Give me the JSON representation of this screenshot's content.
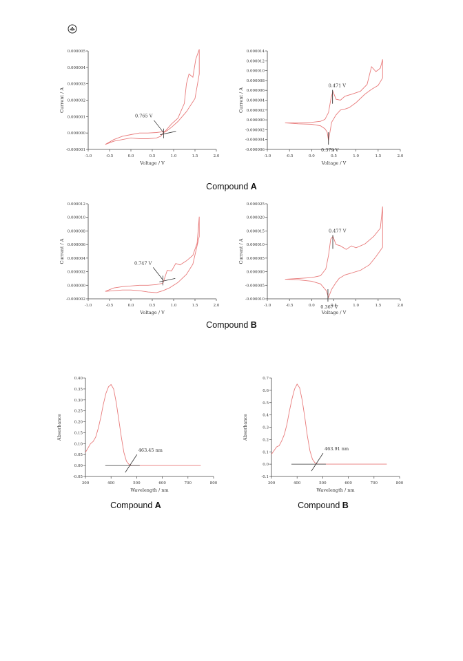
{
  "charts": [
    {
      "type": "line",
      "xlabel": "Voltage / V",
      "ylabel": "Current / A",
      "xlim": [
        -1.0,
        2.0
      ],
      "ylim": [
        -1e-06,
        5e-06
      ],
      "xticks": [
        "-1.0",
        "-0.5",
        "0.0",
        "0.5",
        "1.0",
        "1.5",
        "2.0"
      ],
      "yticks": [
        "-0.000001",
        "0.000000",
        "0.000001",
        "0.000002",
        "0.000003",
        "0.000004",
        "0.000005"
      ],
      "series": [
        {
          "color": "#e87a7a",
          "x": [
            -0.6,
            -0.4,
            -0.2,
            0.0,
            0.2,
            0.4,
            0.6,
            0.8,
            0.95,
            1.1,
            1.25,
            1.3,
            1.36,
            1.45,
            1.52,
            1.6,
            1.6,
            1.5,
            1.3,
            1.1,
            0.95,
            0.85,
            0.75,
            0.7,
            0.6,
            0.4,
            0.2,
            0.0,
            -0.2,
            -0.4,
            -0.6
          ],
          "y": [
            -7e-07,
            -4e-07,
            -2e-07,
            -1e-07,
            0.0,
            0.0,
            3e-08,
            1e-07,
            5.5e-07,
            9e-07,
            1.8e-06,
            3e-06,
            3.6e-06,
            3.4e-06,
            4.5e-06,
            5.1e-06,
            3.6e-06,
            2.1e-06,
            1.3e-06,
            7e-07,
            3.5e-07,
            1.5e-07,
            0.0,
            -2e-07,
            -3e-07,
            -3.5e-07,
            -3.5e-07,
            -3e-07,
            -4e-07,
            -5e-07,
            -7e-07
          ]
        }
      ],
      "annotations": [
        {
          "text": "0.765 V",
          "x": 0.765,
          "y": 2e-08
        }
      ]
    },
    {
      "type": "line",
      "xlabel": "Voltage / V",
      "ylabel": "Current / A",
      "xlim": [
        -1.0,
        2.0
      ],
      "ylim": [
        -6e-06,
        1.4e-05
      ],
      "xticks": [
        "-1.0",
        "-0.5",
        "0.0",
        "0.5",
        "1.0",
        "1.5",
        "2.0"
      ],
      "yticks": [
        "-0.000006",
        "-0.000004",
        "-0.000002",
        "0.000000",
        "0.000002",
        "0.000004",
        "0.000006",
        "0.000008",
        "0.000010",
        "0.000012",
        "0.000014"
      ],
      "series": [
        {
          "color": "#e87a7a",
          "x": [
            -0.6,
            -0.3,
            0.0,
            0.2,
            0.3,
            0.38,
            0.44,
            0.48,
            0.55,
            0.65,
            0.75,
            0.9,
            1.1,
            1.25,
            1.35,
            1.45,
            1.55,
            1.6,
            1.6,
            1.5,
            1.35,
            1.2,
            1.0,
            0.85,
            0.75,
            0.65,
            0.55,
            0.45,
            0.38,
            0.35,
            0.3,
            0.2,
            0.0,
            -0.3,
            -0.6
          ],
          "y": [
            -6e-07,
            -6e-07,
            -5e-07,
            -3e-07,
            1e-07,
            1.5e-06,
            4.5e-06,
            5.8e-06,
            4.2e-06,
            4e-06,
            4.8e-06,
            5.2e-06,
            5.8e-06,
            7.2e-06,
            1.08e-05,
            9.8e-06,
            1.05e-05,
            1.23e-05,
            8.5e-06,
            7e-06,
            6.2e-06,
            5.2e-06,
            3.5e-06,
            2.5e-06,
            2.2e-06,
            2e-06,
            1e-06,
            -5e-07,
            -4.2e-06,
            -2.5e-06,
            -1.8e-06,
            -1.2e-06,
            -9e-07,
            -8e-07,
            -6e-07
          ]
        }
      ],
      "annotations": [
        {
          "text": "0.471 V",
          "x": 0.471,
          "y": 5.8e-06
        },
        {
          "text": "0.379 V",
          "x": 0.379,
          "y": -4.2e-06
        }
      ]
    },
    {
      "type": "line",
      "xlabel": "Voltage / V",
      "ylabel": "Current / A",
      "xlim": [
        -1.0,
        2.0
      ],
      "ylim": [
        -2e-06,
        1.2e-05
      ],
      "xticks": [
        "-1.0",
        "-0.5",
        "0.0",
        "0.5",
        "1.0",
        "1.5",
        "2.0"
      ],
      "yticks": [
        "-0.000002",
        "0.000000",
        "0.000002",
        "0.000004",
        "0.000006",
        "0.000008",
        "0.000010",
        "0.000012"
      ],
      "series": [
        {
          "color": "#e87a7a",
          "x": [
            -0.6,
            -0.4,
            -0.2,
            0.0,
            0.2,
            0.4,
            0.6,
            0.75,
            0.85,
            0.95,
            1.05,
            1.15,
            1.3,
            1.45,
            1.55,
            1.6,
            1.6,
            1.45,
            1.3,
            1.1,
            0.9,
            0.75,
            0.6,
            0.4,
            0.2,
            0.0,
            -0.2,
            -0.4,
            -0.6
          ],
          "y": [
            -9e-07,
            -4e-07,
            -2e-07,
            -1e-07,
            0.0,
            0.0,
            1e-07,
            3e-07,
            2.2e-06,
            2.1e-06,
            3.2e-06,
            3e-06,
            3.6e-06,
            4.4e-06,
            6.2e-06,
            1.01e-05,
            7.2e-06,
            3.1e-06,
            1.6e-06,
            4e-07,
            -4e-07,
            -8e-07,
            -1.1e-06,
            -1e-06,
            -8e-07,
            -7e-07,
            -7e-07,
            -8e-07,
            -9e-07
          ]
        }
      ],
      "annotations": [
        {
          "text": "0.747 V",
          "x": 0.747,
          "y": 8e-07
        }
      ]
    },
    {
      "type": "line",
      "xlabel": "Voltage / V",
      "ylabel": "Current / A",
      "xlim": [
        -1.0,
        2.0
      ],
      "ylim": [
        -1e-05,
        2.5e-05
      ],
      "xticks": [
        "-1.0",
        "-0.5",
        "0.0",
        "0.5",
        "1.0",
        "1.5",
        "2.0"
      ],
      "yticks": [
        "-0.000010",
        "-0.000005",
        "0.000000",
        "0.000005",
        "0.000010",
        "0.000015",
        "0.000020",
        "0.000025"
      ],
      "series": [
        {
          "color": "#e87a7a",
          "x": [
            -0.6,
            -0.3,
            0.0,
            0.2,
            0.32,
            0.38,
            0.43,
            0.48,
            0.55,
            0.65,
            0.78,
            0.9,
            1.0,
            1.2,
            1.4,
            1.55,
            1.6,
            1.6,
            1.45,
            1.3,
            1.1,
            0.9,
            0.75,
            0.62,
            0.55,
            0.45,
            0.38,
            0.33,
            0.2,
            0.0,
            -0.3,
            -0.6
          ],
          "y": [
            -2.8e-06,
            -2.5e-06,
            -2.2e-06,
            -1.5e-06,
            1e-06,
            6e-06,
            1.2e-05,
            1.3e-05,
            1e-05,
            9.5e-06,
            8.2e-06,
            9.5e-06,
            8.8e-06,
            1.02e-05,
            1.3e-05,
            1.6e-05,
            2.4e-05,
            9e-06,
            5.5e-06,
            2.5e-06,
            5e-07,
            -5e-07,
            -1.2e-06,
            -2.5e-06,
            -4e-06,
            -6.5e-06,
            -9.5e-06,
            -7e-06,
            -4.5e-06,
            -3.5e-06,
            -3e-06,
            -2.8e-06
          ]
        }
      ],
      "annotations": [
        {
          "text": "0.477 V",
          "x": 0.477,
          "y": 1.3e-05
        },
        {
          "text": "0.367 V",
          "x": 0.367,
          "y": -9.5e-06
        }
      ]
    },
    {
      "type": "line",
      "xlabel": "Wavelength / nm",
      "ylabel": "Absorbance",
      "xlim": [
        300,
        800
      ],
      "ylim": [
        -0.05,
        0.4
      ],
      "xticks": [
        "300",
        "400",
        "500",
        "600",
        "700",
        "800"
      ],
      "yticks": [
        "-0.05",
        "0.00",
        "0.05",
        "0.10",
        "0.15",
        "0.20",
        "0.25",
        "0.30",
        "0.35",
        "0.40"
      ],
      "series": [
        {
          "color": "#e87a7a",
          "x": [
            300,
            310,
            320,
            330,
            340,
            350,
            360,
            370,
            380,
            390,
            400,
            410,
            420,
            430,
            440,
            450,
            460,
            470,
            480,
            500,
            550,
            600,
            650,
            700,
            750
          ],
          "y": [
            0.06,
            0.08,
            0.1,
            0.11,
            0.13,
            0.17,
            0.22,
            0.28,
            0.33,
            0.36,
            0.37,
            0.35,
            0.29,
            0.21,
            0.13,
            0.06,
            0.02,
            0.005,
            0.0,
            0.0,
            0.0,
            0.0,
            0.0,
            0.0,
            0.0
          ]
        }
      ],
      "annotations": [
        {
          "text": "463.45 nm",
          "x": 463.45,
          "y": 0.0
        }
      ]
    },
    {
      "type": "line",
      "xlabel": "Wavelength / nm",
      "ylabel": "Absorbance",
      "xlim": [
        300,
        800
      ],
      "ylim": [
        -0.1,
        0.7
      ],
      "xticks": [
        "300",
        "400",
        "500",
        "600",
        "700",
        "800"
      ],
      "yticks": [
        "-0.1",
        "0.0",
        "0.1",
        "0.2",
        "0.3",
        "0.4",
        "0.5",
        "0.6",
        "0.7"
      ],
      "series": [
        {
          "color": "#e87a7a",
          "x": [
            300,
            310,
            320,
            330,
            340,
            350,
            360,
            370,
            380,
            390,
            400,
            410,
            420,
            430,
            440,
            450,
            460,
            470,
            480,
            500,
            550,
            600,
            650,
            700,
            750
          ],
          "y": [
            0.08,
            0.11,
            0.14,
            0.15,
            0.19,
            0.24,
            0.32,
            0.43,
            0.53,
            0.61,
            0.65,
            0.62,
            0.52,
            0.38,
            0.23,
            0.11,
            0.04,
            0.01,
            0.0,
            0.0,
            0.0,
            0.0,
            0.0,
            0.0,
            0.0
          ]
        }
      ],
      "annotations": [
        {
          "text": "463.91 nm",
          "x": 463.91,
          "y": 0.0
        }
      ]
    }
  ],
  "captions": {
    "cv_a": {
      "prefix": "Compound ",
      "bold": "A"
    },
    "cv_b": {
      "prefix": "Compound ",
      "bold": "B"
    },
    "uv_a": {
      "prefix": "Compound ",
      "bold": "A"
    },
    "uv_b": {
      "prefix": "Compound ",
      "bold": "B"
    }
  },
  "logo": {
    "icon": "journal-logo-icon"
  },
  "colors": {
    "curve": "#e87a7a",
    "axis": "#444444"
  }
}
